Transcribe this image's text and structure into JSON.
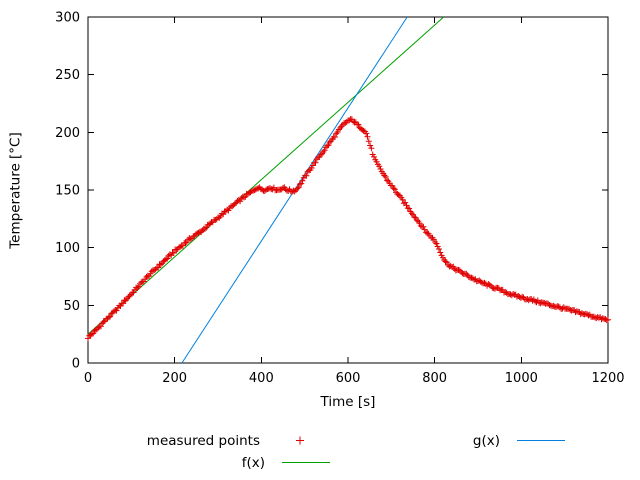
{
  "chart_data": {
    "type": "scatter",
    "title": "",
    "xlabel": "Time [s]",
    "ylabel": "Temperature [°C]",
    "xlim": [
      0,
      1200
    ],
    "ylim": [
      0,
      300
    ],
    "x_ticks": [
      0,
      200,
      400,
      600,
      800,
      1000,
      1200
    ],
    "y_ticks": [
      0,
      50,
      100,
      150,
      200,
      250,
      300
    ],
    "grid": false,
    "legend": {
      "position": "below"
    },
    "series": [
      {
        "name": "measured points",
        "type": "points",
        "marker": "plus",
        "marker_size": 3,
        "color": "#e00000",
        "sample_step": 3,
        "noise": 1.1,
        "keypoints": [
          [
            0,
            22
          ],
          [
            20,
            29
          ],
          [
            40,
            37
          ],
          [
            60,
            44
          ],
          [
            80,
            52
          ],
          [
            100,
            60
          ],
          [
            120,
            68
          ],
          [
            140,
            76
          ],
          [
            160,
            83
          ],
          [
            180,
            90
          ],
          [
            200,
            97
          ],
          [
            220,
            103
          ],
          [
            240,
            109
          ],
          [
            260,
            114
          ],
          [
            280,
            120
          ],
          [
            300,
            126
          ],
          [
            320,
            132
          ],
          [
            340,
            138
          ],
          [
            360,
            144
          ],
          [
            380,
            149
          ],
          [
            390,
            152
          ],
          [
            400,
            151
          ],
          [
            410,
            150
          ],
          [
            420,
            152
          ],
          [
            430,
            151
          ],
          [
            440,
            150
          ],
          [
            450,
            152
          ],
          [
            460,
            150
          ],
          [
            470,
            149
          ],
          [
            480,
            150
          ],
          [
            490,
            155
          ],
          [
            500,
            161
          ],
          [
            520,
            172
          ],
          [
            540,
            182
          ],
          [
            560,
            192
          ],
          [
            580,
            202
          ],
          [
            590,
            207
          ],
          [
            600,
            210
          ],
          [
            610,
            211
          ],
          [
            620,
            207
          ],
          [
            630,
            204
          ],
          [
            640,
            201
          ],
          [
            645,
            196
          ],
          [
            650,
            190
          ],
          [
            655,
            184
          ],
          [
            660,
            178
          ],
          [
            665,
            174
          ],
          [
            670,
            171
          ],
          [
            680,
            165
          ],
          [
            690,
            159
          ],
          [
            700,
            154
          ],
          [
            710,
            149
          ],
          [
            720,
            144
          ],
          [
            730,
            139
          ],
          [
            740,
            134
          ],
          [
            750,
            129
          ],
          [
            760,
            124
          ],
          [
            770,
            119
          ],
          [
            780,
            114
          ],
          [
            790,
            110
          ],
          [
            800,
            106
          ],
          [
            805,
            103
          ],
          [
            810,
            99
          ],
          [
            815,
            95
          ],
          [
            820,
            91
          ],
          [
            825,
            88
          ],
          [
            830,
            86
          ],
          [
            840,
            83
          ],
          [
            850,
            81
          ],
          [
            860,
            79
          ],
          [
            880,
            75
          ],
          [
            900,
            71
          ],
          [
            920,
            68
          ],
          [
            940,
            65
          ],
          [
            960,
            62
          ],
          [
            980,
            59
          ],
          [
            1000,
            57
          ],
          [
            1020,
            55
          ],
          [
            1040,
            53
          ],
          [
            1060,
            51
          ],
          [
            1080,
            49
          ],
          [
            1100,
            47
          ],
          [
            1120,
            45
          ],
          [
            1140,
            43
          ],
          [
            1160,
            41
          ],
          [
            1180,
            39
          ],
          [
            1200,
            37
          ]
        ]
      },
      {
        "name": "f(x)",
        "type": "line",
        "color": "#00a000",
        "slope": 0.335,
        "intercept": 25
      },
      {
        "name": "g(x)",
        "type": "line",
        "color": "#0080e0",
        "slope": 0.577,
        "intercept": -125
      }
    ]
  }
}
